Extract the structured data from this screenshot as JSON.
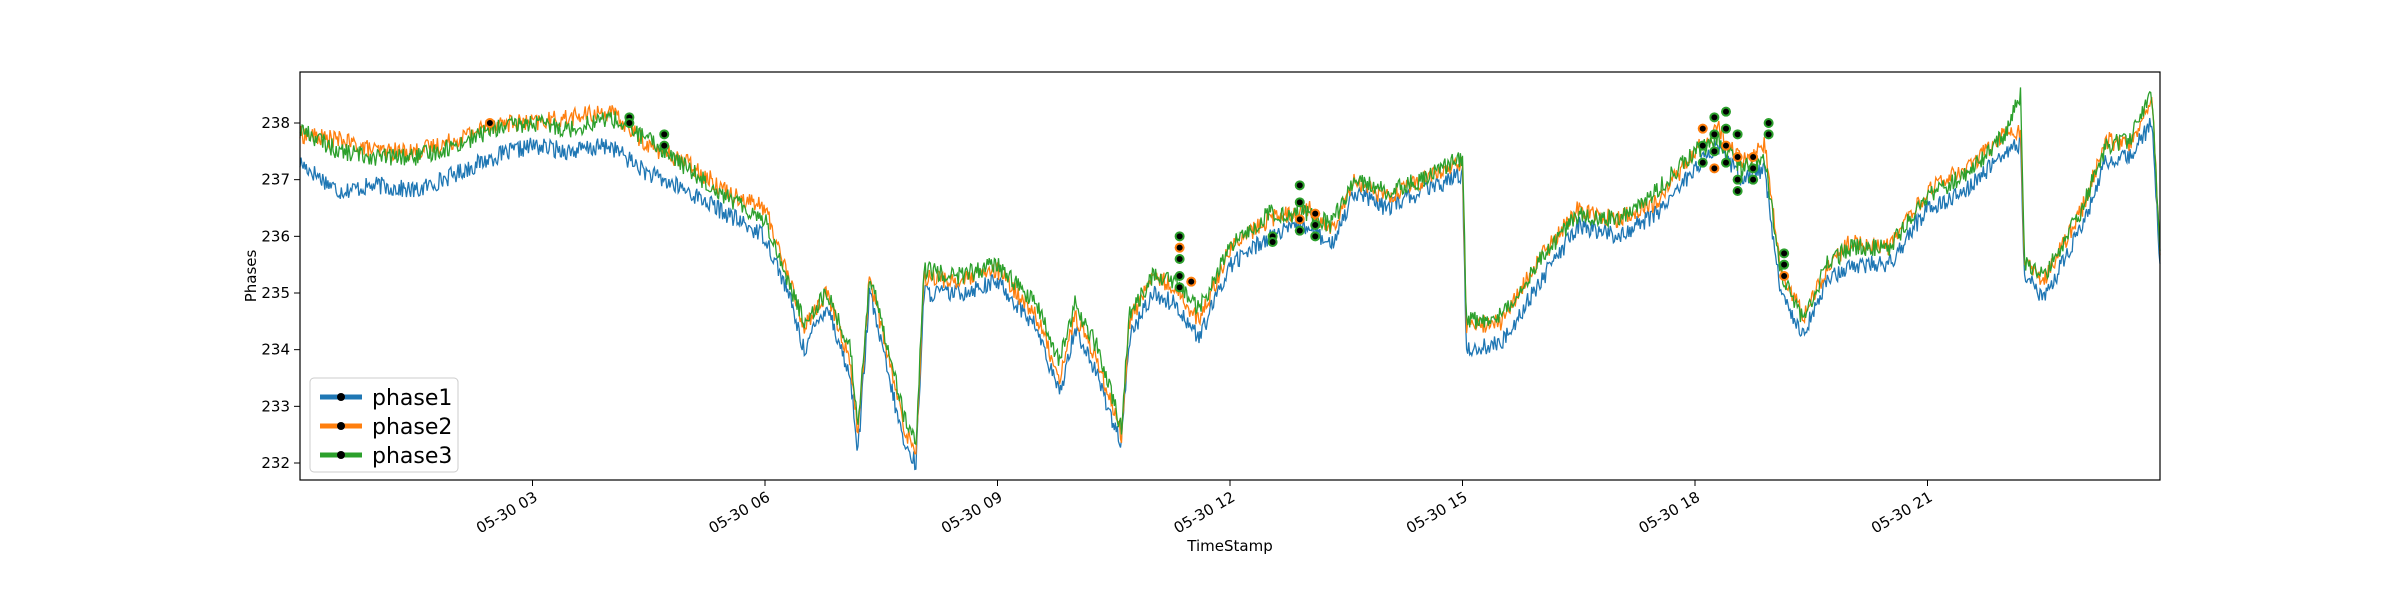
{
  "chart_data": {
    "type": "line",
    "title": "",
    "xlabel": "TimeStamp",
    "ylabel": "Phases",
    "ylim": [
      231.7,
      238.9
    ],
    "xlim_hours": [
      0,
      24
    ],
    "grid": false,
    "legend_position": "lower-left",
    "x_ticks": [
      {
        "label": "05-30 03",
        "hour": 3
      },
      {
        "label": "05-30 06",
        "hour": 6
      },
      {
        "label": "05-30 09",
        "hour": 9
      },
      {
        "label": "05-30 12",
        "hour": 12
      },
      {
        "label": "05-30 15",
        "hour": 15
      },
      {
        "label": "05-30 18",
        "hour": 18
      },
      {
        "label": "05-30 21",
        "hour": 21
      }
    ],
    "y_ticks": [
      "232",
      "233",
      "234",
      "235",
      "236",
      "237",
      "238"
    ],
    "series": [
      {
        "name": "phase1",
        "color": "#1f77b4",
        "points": [
          [
            0,
            237.3
          ],
          [
            0.5,
            236.8
          ],
          [
            1,
            236.9
          ],
          [
            1.5,
            236.8
          ],
          [
            2,
            237.1
          ],
          [
            2.5,
            237.4
          ],
          [
            3,
            237.6
          ],
          [
            3.5,
            237.5
          ],
          [
            4,
            237.6
          ],
          [
            4.5,
            237.1
          ],
          [
            5,
            236.8
          ],
          [
            5.5,
            236.4
          ],
          [
            6,
            236.0
          ],
          [
            6.3,
            235.0
          ],
          [
            6.5,
            234.0
          ],
          [
            6.8,
            234.8
          ],
          [
            7.1,
            233.5
          ],
          [
            7.2,
            232.2
          ],
          [
            7.35,
            235.0
          ],
          [
            7.6,
            233.5
          ],
          [
            7.8,
            232.3
          ],
          [
            7.95,
            232.0
          ],
          [
            8.05,
            235.0
          ],
          [
            8.5,
            235.0
          ],
          [
            9,
            235.2
          ],
          [
            9.5,
            234.4
          ],
          [
            9.8,
            233.2
          ],
          [
            10,
            234.4
          ],
          [
            10.3,
            233.5
          ],
          [
            10.6,
            232.3
          ],
          [
            10.7,
            234.2
          ],
          [
            11,
            235.0
          ],
          [
            11.3,
            234.8
          ],
          [
            11.6,
            234.2
          ],
          [
            12,
            235.5
          ],
          [
            12.5,
            236.0
          ],
          [
            13,
            236.2
          ],
          [
            13.3,
            235.8
          ],
          [
            13.6,
            236.8
          ],
          [
            14,
            236.5
          ],
          [
            14.5,
            236.8
          ],
          [
            15,
            237.1
          ],
          [
            15.05,
            234.0
          ],
          [
            15.5,
            234.1
          ],
          [
            16,
            235.2
          ],
          [
            16.5,
            236.2
          ],
          [
            17,
            236.0
          ],
          [
            17.5,
            236.4
          ],
          [
            18,
            237.2
          ],
          [
            18.3,
            237.6
          ],
          [
            18.6,
            237.0
          ],
          [
            18.9,
            237.2
          ],
          [
            19.1,
            235.0
          ],
          [
            19.4,
            234.3
          ],
          [
            19.7,
            235.2
          ],
          [
            20,
            235.5
          ],
          [
            20.5,
            235.5
          ],
          [
            21,
            236.5
          ],
          [
            21.5,
            236.8
          ],
          [
            22,
            237.5
          ],
          [
            22.2,
            237.6
          ],
          [
            22.25,
            235.3
          ],
          [
            22.5,
            234.9
          ],
          [
            23,
            236.2
          ],
          [
            23.3,
            237.3
          ],
          [
            23.6,
            237.4
          ],
          [
            23.9,
            238.0
          ],
          [
            24,
            235.4
          ]
        ]
      },
      {
        "name": "phase2",
        "color": "#ff7f0e",
        "points": [
          [
            0,
            237.8
          ],
          [
            0.5,
            237.7
          ],
          [
            1,
            237.5
          ],
          [
            1.5,
            237.5
          ],
          [
            2,
            237.7
          ],
          [
            2.5,
            238.0
          ],
          [
            3,
            238.0
          ],
          [
            3.5,
            238.1
          ],
          [
            4,
            238.2
          ],
          [
            4.5,
            237.6
          ],
          [
            5,
            237.3
          ],
          [
            5.5,
            236.8
          ],
          [
            6,
            236.5
          ],
          [
            6.3,
            235.3
          ],
          [
            6.5,
            234.4
          ],
          [
            6.8,
            235.0
          ],
          [
            7.1,
            233.8
          ],
          [
            7.2,
            232.5
          ],
          [
            7.35,
            235.3
          ],
          [
            7.6,
            233.8
          ],
          [
            7.8,
            232.6
          ],
          [
            7.95,
            232.2
          ],
          [
            8.05,
            235.3
          ],
          [
            8.5,
            235.2
          ],
          [
            9,
            235.4
          ],
          [
            9.5,
            234.6
          ],
          [
            9.8,
            233.5
          ],
          [
            10,
            234.6
          ],
          [
            10.3,
            233.8
          ],
          [
            10.6,
            232.5
          ],
          [
            10.7,
            234.5
          ],
          [
            11,
            235.3
          ],
          [
            11.3,
            235.1
          ],
          [
            11.6,
            234.5
          ],
          [
            12,
            235.8
          ],
          [
            12.5,
            236.3
          ],
          [
            13,
            236.5
          ],
          [
            13.3,
            236.1
          ],
          [
            13.6,
            237.0
          ],
          [
            14,
            236.7
          ],
          [
            14.5,
            237.0
          ],
          [
            15,
            237.3
          ],
          [
            15.05,
            234.4
          ],
          [
            15.5,
            234.5
          ],
          [
            16,
            235.6
          ],
          [
            16.5,
            236.5
          ],
          [
            17,
            236.3
          ],
          [
            17.5,
            236.6
          ],
          [
            18,
            237.5
          ],
          [
            18.3,
            237.9
          ],
          [
            18.6,
            237.3
          ],
          [
            18.9,
            237.6
          ],
          [
            19.1,
            235.4
          ],
          [
            19.4,
            234.6
          ],
          [
            19.7,
            235.4
          ],
          [
            20,
            235.9
          ],
          [
            20.5,
            235.8
          ],
          [
            21,
            236.8
          ],
          [
            21.5,
            237.2
          ],
          [
            22,
            237.8
          ],
          [
            22.2,
            237.9
          ],
          [
            22.25,
            235.6
          ],
          [
            22.5,
            235.2
          ],
          [
            23,
            236.5
          ],
          [
            23.3,
            237.7
          ],
          [
            23.6,
            237.6
          ],
          [
            23.9,
            238.4
          ],
          [
            24,
            235.7
          ]
        ]
      },
      {
        "name": "phase3",
        "color": "#2ca02c",
        "points": [
          [
            0,
            237.9
          ],
          [
            0.5,
            237.5
          ],
          [
            1,
            237.4
          ],
          [
            1.5,
            237.4
          ],
          [
            2,
            237.6
          ],
          [
            2.5,
            237.9
          ],
          [
            3,
            238.0
          ],
          [
            3.5,
            237.9
          ],
          [
            4,
            238.1
          ],
          [
            4.5,
            237.7
          ],
          [
            5,
            237.2
          ],
          [
            5.5,
            236.7
          ],
          [
            6,
            236.3
          ],
          [
            6.3,
            235.2
          ],
          [
            6.5,
            234.5
          ],
          [
            6.8,
            235.0
          ],
          [
            7.1,
            234.0
          ],
          [
            7.2,
            232.7
          ],
          [
            7.35,
            235.3
          ],
          [
            7.6,
            234.0
          ],
          [
            7.8,
            232.8
          ],
          [
            7.95,
            232.3
          ],
          [
            8.05,
            235.4
          ],
          [
            8.5,
            235.3
          ],
          [
            9,
            235.5
          ],
          [
            9.5,
            234.8
          ],
          [
            9.8,
            233.8
          ],
          [
            10,
            234.8
          ],
          [
            10.3,
            234.0
          ],
          [
            10.6,
            232.6
          ],
          [
            10.7,
            234.6
          ],
          [
            11,
            235.3
          ],
          [
            11.3,
            235.2
          ],
          [
            11.6,
            234.7
          ],
          [
            12,
            235.8
          ],
          [
            12.5,
            236.4
          ],
          [
            13,
            236.4
          ],
          [
            13.3,
            236.2
          ],
          [
            13.6,
            237.0
          ],
          [
            14,
            236.8
          ],
          [
            14.5,
            237.0
          ],
          [
            15,
            237.4
          ],
          [
            15.05,
            234.5
          ],
          [
            15.5,
            234.6
          ],
          [
            16,
            235.6
          ],
          [
            16.5,
            236.4
          ],
          [
            17,
            236.3
          ],
          [
            17.5,
            236.8
          ],
          [
            18,
            237.5
          ],
          [
            18.3,
            237.7
          ],
          [
            18.6,
            237.2
          ],
          [
            18.9,
            237.4
          ],
          [
            19.1,
            235.4
          ],
          [
            19.4,
            234.5
          ],
          [
            19.7,
            235.5
          ],
          [
            20,
            235.8
          ],
          [
            20.5,
            235.8
          ],
          [
            21,
            236.7
          ],
          [
            21.5,
            237.1
          ],
          [
            22,
            237.8
          ],
          [
            22.2,
            238.5
          ],
          [
            22.25,
            235.5
          ],
          [
            22.5,
            235.3
          ],
          [
            23,
            236.5
          ],
          [
            23.3,
            237.6
          ],
          [
            23.6,
            237.7
          ],
          [
            23.9,
            238.5
          ],
          [
            24,
            235.6
          ]
        ]
      }
    ],
    "anomaly_clusters": [
      {
        "hour": 2.45,
        "y": [
          238.0
        ]
      },
      {
        "hour": 4.25,
        "y": [
          238.1,
          238.0
        ]
      },
      {
        "hour": 4.7,
        "y": [
          237.8,
          237.6
        ]
      },
      {
        "hour": 11.35,
        "y": [
          236.0,
          235.8,
          235.6,
          235.3,
          235.1
        ]
      },
      {
        "hour": 11.5,
        "y": [
          235.2
        ]
      },
      {
        "hour": 12.55,
        "y": [
          236.0,
          235.9
        ]
      },
      {
        "hour": 12.9,
        "y": [
          236.9,
          236.6,
          236.3,
          236.1
        ]
      },
      {
        "hour": 13.1,
        "y": [
          236.2,
          236.4,
          236.0
        ]
      },
      {
        "hour": 18.1,
        "y": [
          237.9,
          237.6,
          237.3
        ]
      },
      {
        "hour": 18.25,
        "y": [
          238.1,
          237.8,
          237.5,
          237.2
        ]
      },
      {
        "hour": 18.4,
        "y": [
          238.2,
          237.9,
          237.6,
          237.3
        ]
      },
      {
        "hour": 18.55,
        "y": [
          237.8,
          237.4,
          237.0,
          236.8
        ]
      },
      {
        "hour": 18.75,
        "y": [
          237.4,
          237.2,
          237.0
        ]
      },
      {
        "hour": 18.95,
        "y": [
          238.0,
          237.8
        ]
      },
      {
        "hour": 19.15,
        "y": [
          235.7,
          235.5,
          235.3
        ]
      }
    ]
  }
}
